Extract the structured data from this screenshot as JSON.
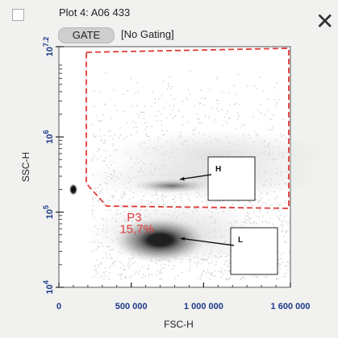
{
  "header": {
    "title": "Plot 4: A06 433",
    "gate_button": "GATE",
    "gating_status": "[No Gating]",
    "close_icon": "close-icon"
  },
  "chart_data": {
    "type": "scatter",
    "title": "Plot 4: A06 433",
    "xlabel": "FSC-H",
    "ylabel": "SSC-H",
    "x_scale": "linear",
    "y_scale": "log10",
    "xlim": [
      0,
      1600000
    ],
    "ylim_exponent": [
      4,
      7.2
    ],
    "x_ticks": [
      0,
      500000,
      1000000,
      1600000
    ],
    "x_tick_labels": [
      "0",
      "500 000",
      "1 000 000",
      "1 600 000"
    ],
    "y_tick_exponents": [
      4,
      5,
      6,
      7.2
    ],
    "y_tick_labels": [
      "10^4",
      "10^5",
      "10^6",
      "10^7.2"
    ],
    "gate": {
      "name": "P3",
      "percentage": "15,7%",
      "color": "#e03a3a",
      "style": "dashed"
    },
    "populations": [
      {
        "label": "H",
        "fsc": 780000,
        "ssc_exponent": 5.35
      },
      {
        "label": "L",
        "fsc": 700000,
        "ssc_exponent": 4.63
      }
    ],
    "background_color": "#ffffff",
    "density_colors": [
      "#dcdcdc",
      "#b0b0b0",
      "#707070",
      "#202020"
    ]
  }
}
